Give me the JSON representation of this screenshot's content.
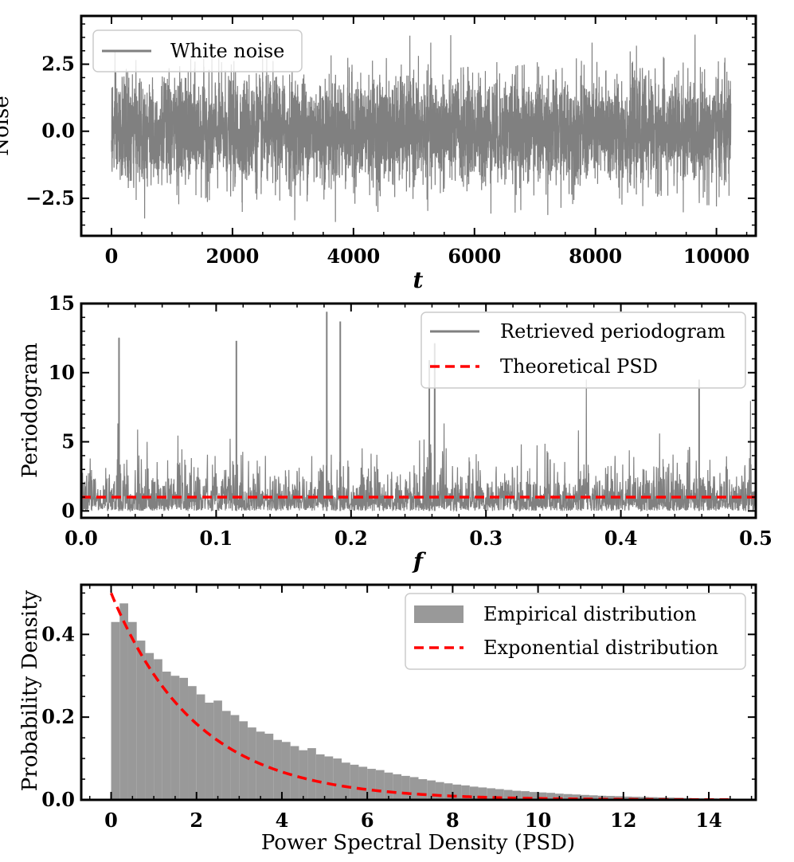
{
  "chart_data": [
    {
      "type": "line",
      "panel": "top",
      "xlabel": "t",
      "ylabel": "Noise",
      "xlim": [
        -500,
        10650
      ],
      "ylim": [
        -3.9,
        4.3
      ],
      "xticks": [
        0,
        2000,
        4000,
        6000,
        8000,
        10000
      ],
      "xtick_labels": [
        "0",
        "2000",
        "4000",
        "6000",
        "8000",
        "10000"
      ],
      "yticks": [
        -2.5,
        0.0,
        2.5
      ],
      "ytick_labels": [
        "−2.5",
        "0.0",
        "2.5"
      ],
      "series": [
        {
          "name": "White noise",
          "color": "#808080",
          "n_points": 10240,
          "x_range": [
            0,
            10240
          ],
          "mean": 0.0,
          "std": 1.0,
          "typical_max": 2.9,
          "typical_min": -2.9,
          "extreme_max": 3.6,
          "extreme_min": -3.6
        }
      ],
      "legend": {
        "entries": [
          "White noise"
        ],
        "location": "top-left"
      }
    },
    {
      "type": "line",
      "panel": "middle",
      "xlabel": "f",
      "ylabel": "Periodogram",
      "xlim": [
        0.0,
        0.5
      ],
      "ylim": [
        -0.5,
        15.0
      ],
      "xticks": [
        0.0,
        0.1,
        0.2,
        0.3,
        0.4,
        0.5
      ],
      "xtick_labels": [
        "0.0",
        "0.1",
        "0.2",
        "0.3",
        "0.4",
        "0.5"
      ],
      "yticks": [
        0,
        5,
        10,
        15
      ],
      "ytick_labels": [
        "0",
        "5",
        "10",
        "15"
      ],
      "series": [
        {
          "name": "Retrieved periodogram",
          "color": "#808080",
          "x_range": [
            0.0,
            0.5
          ],
          "n_points": 5120,
          "distribution": "exponential",
          "mean": 1.0,
          "max": 14.5,
          "peaks": [
            {
              "f": 0.028,
              "y": 12.5
            },
            {
              "f": 0.115,
              "y": 12.3
            },
            {
              "f": 0.182,
              "y": 14.4
            },
            {
              "f": 0.192,
              "y": 13.7
            },
            {
              "f": 0.258,
              "y": 10.9
            },
            {
              "f": 0.262,
              "y": 12.1
            },
            {
              "f": 0.458,
              "y": 9.5
            }
          ]
        },
        {
          "name": "Theoretical PSD",
          "color": "#ff0000",
          "style": "dashed",
          "x": [
            0.0,
            0.5
          ],
          "y": [
            1.0,
            1.0
          ]
        }
      ],
      "legend": {
        "entries": [
          "Retrieved periodogram",
          "Theoretical PSD"
        ],
        "location": "top-right"
      }
    },
    {
      "type": "bar",
      "panel": "bottom",
      "xlabel": "Power Spectral Density (PSD)",
      "ylabel": "Probability Density",
      "xlim": [
        -0.7,
        15.1
      ],
      "ylim": [
        0.0,
        0.52
      ],
      "xticks": [
        0,
        2,
        4,
        6,
        8,
        10,
        12,
        14
      ],
      "xtick_labels": [
        "0",
        "2",
        "4",
        "6",
        "8",
        "10",
        "12",
        "14"
      ],
      "yticks": [
        0.0,
        0.2,
        0.4
      ],
      "ytick_labels": [
        "0.0",
        "0.2",
        "0.4"
      ],
      "bin_width": 0.2,
      "bin_start": 0.0,
      "values": [
        0.43,
        0.475,
        0.43,
        0.385,
        0.355,
        0.34,
        0.31,
        0.3,
        0.295,
        0.275,
        0.255,
        0.235,
        0.24,
        0.215,
        0.205,
        0.19,
        0.175,
        0.165,
        0.16,
        0.145,
        0.14,
        0.13,
        0.12,
        0.125,
        0.11,
        0.105,
        0.1,
        0.09,
        0.085,
        0.08,
        0.075,
        0.072,
        0.066,
        0.062,
        0.058,
        0.055,
        0.05,
        0.047,
        0.043,
        0.04,
        0.037,
        0.035,
        0.032,
        0.03,
        0.028,
        0.026,
        0.024,
        0.022,
        0.021,
        0.019,
        0.018,
        0.017,
        0.015,
        0.014,
        0.013,
        0.012,
        0.011,
        0.01,
        0.0095,
        0.009,
        0.008,
        0.0075,
        0.007,
        0.0065,
        0.006,
        0.0055,
        0.005,
        0.0045,
        0.004,
        0.0038,
        0.0035,
        0.0032,
        0.003,
        0.0027,
        0.0025,
        0.0022,
        0.002,
        0.0018,
        0.0016,
        0.0015,
        0.0013,
        0.0012,
        0.0011,
        0.001,
        0.0009,
        0.0008,
        0.0007,
        0.0006,
        0.0006,
        0.0005,
        0.0005,
        0.0004,
        0.0004,
        0.0003,
        0.0003,
        0.0003,
        0.0002,
        0.0002,
        0.0002,
        0.0001,
        0.0001,
        0.0001,
        0.0001,
        0.0001,
        0.0001,
        0.0001,
        0.0,
        0.0001,
        0.0,
        0.0001,
        0.0,
        0.0,
        0.0001,
        0.0,
        0.0,
        0.0001,
        0.0,
        0.0,
        0.0,
        0.0,
        0.0,
        0.0,
        0.0,
        0.0,
        0.0,
        0.0,
        0.0,
        0.0,
        0.0,
        0.0,
        0.0,
        0.0,
        0.0,
        0.0,
        0.0,
        0.0,
        0.0,
        0.0,
        0.0,
        0.0,
        0.0,
        0.0,
        0.0,
        0.0,
        0.0,
        0.0,
        0.0,
        0.0,
        0.0,
        0.0,
        0.0,
        0.0,
        0.0,
        0.0,
        0.0,
        0.0,
        0.0,
        0.0,
        0.0,
        0.0,
        0.0,
        0.0,
        0.0,
        0.0,
        0.0,
        0.0,
        0.0,
        0.0,
        0.0,
        0.0,
        0.0,
        0.0,
        0.0,
        0.0,
        0.0,
        0.0,
        0.0,
        0.0,
        0.0,
        0.0,
        0.0,
        0.0,
        0.0,
        0.0,
        0.0,
        0.0,
        0.0,
        0.0,
        0.0,
        0.0,
        0.0,
        0.0,
        0.0,
        0.0,
        0.0,
        0.0,
        0.0,
        0.0,
        0.0,
        0.0,
        0.0,
        0.0,
        0.0,
        0.0,
        0.0,
        0.0,
        0.0,
        0.0,
        0.0
      ],
      "series": [
        {
          "name": "Empirical distribution",
          "color": "#999999",
          "kind": "histogram"
        },
        {
          "name": "Exponential distribution",
          "color": "#ff0000",
          "style": "dashed",
          "formula": "0.5*exp(-0.5*x)",
          "x_range": [
            0.0,
            14.6
          ]
        }
      ],
      "legend": {
        "entries": [
          "Empirical distribution",
          "Exponential distribution"
        ],
        "location": "top-right"
      }
    }
  ]
}
